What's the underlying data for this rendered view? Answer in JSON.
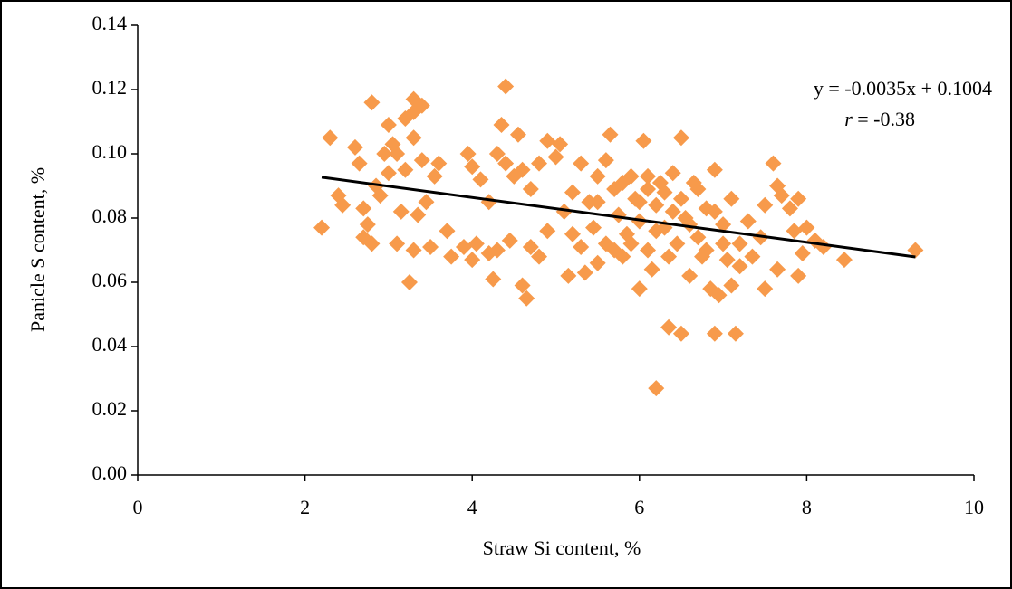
{
  "chart_data": {
    "type": "scatter",
    "x_label": "Straw Si content, %",
    "y_label": "Panicle S content, %",
    "equation": "y = -0.0035x + 0.1004",
    "r_symbol": "r",
    "r_text": " = -0.38",
    "color": "#f79a4b",
    "trendline": {
      "color": "#000000",
      "x": [
        2.2,
        9.3
      ],
      "y": [
        0.0927,
        0.0679
      ]
    },
    "xlim": [
      0,
      10
    ],
    "xticks": [
      0,
      2,
      4,
      6,
      8,
      10
    ],
    "ylim": [
      0,
      0.14
    ],
    "yticks": [
      {
        "value": 0,
        "label": "0.00"
      },
      {
        "value": 0.02,
        "label": "0.02"
      },
      {
        "value": 0.04,
        "label": "0.04"
      },
      {
        "value": 0.06,
        "label": "0.06"
      },
      {
        "value": 0.08,
        "label": "0.08"
      },
      {
        "value": 0.1,
        "label": "0.10"
      },
      {
        "value": 0.12,
        "label": "0.12"
      },
      {
        "value": 0.14,
        "label": "0.14"
      }
    ],
    "x": [
      2.2,
      2.3,
      2.4,
      2.45,
      2.6,
      2.65,
      2.7,
      2.7,
      2.8,
      2.8,
      2.85,
      2.9,
      2.95,
      3.0,
      3.05,
      3.1,
      3.1,
      3.15,
      3.2,
      3.2,
      3.25,
      3.3,
      3.3,
      3.3,
      3.3,
      3.35,
      3.4,
      3.4,
      3.45,
      3.5,
      3.55,
      3.6,
      3.7,
      3.75,
      3.9,
      3.95,
      4.0,
      4.0,
      4.05,
      4.1,
      4.2,
      4.2,
      4.25,
      4.3,
      4.35,
      4.4,
      4.4,
      4.45,
      4.5,
      4.55,
      4.6,
      4.65,
      4.7,
      4.7,
      4.8,
      4.8,
      4.9,
      4.9,
      5.0,
      5.05,
      5.1,
      5.15,
      5.2,
      5.3,
      5.3,
      5.35,
      5.4,
      5.45,
      5.5,
      5.5,
      5.6,
      5.6,
      5.65,
      5.7,
      5.75,
      5.8,
      5.85,
      5.9,
      5.95,
      6.0,
      6.0,
      6.05,
      6.1,
      6.1,
      6.15,
      6.2,
      6.2,
      6.25,
      6.3,
      6.35,
      6.35,
      6.4,
      6.45,
      6.5,
      6.5,
      6.5,
      6.55,
      6.6,
      6.65,
      6.7,
      6.75,
      6.8,
      6.85,
      6.9,
      6.9,
      6.95,
      7.0,
      7.05,
      7.1,
      7.1,
      7.15,
      7.2,
      7.3,
      7.35,
      7.45,
      7.5,
      7.5,
      7.6,
      7.65,
      7.65,
      7.7,
      7.8,
      7.85,
      7.9,
      7.9,
      7.95,
      8.0,
      8.1,
      8.2,
      8.45,
      9.3,
      5.2,
      5.7,
      6.0,
      6.3,
      6.6,
      6.8,
      7.0,
      5.9,
      6.2,
      4.3,
      4.6,
      3.0,
      2.75,
      6.4,
      6.1,
      5.5,
      6.7,
      6.9,
      7.2,
      5.8
    ],
    "y": [
      0.077,
      0.105,
      0.087,
      0.084,
      0.102,
      0.097,
      0.083,
      0.074,
      0.116,
      0.072,
      0.09,
      0.087,
      0.1,
      0.109,
      0.103,
      0.1,
      0.072,
      0.082,
      0.111,
      0.095,
      0.06,
      0.117,
      0.113,
      0.105,
      0.07,
      0.081,
      0.115,
      0.098,
      0.085,
      0.071,
      0.093,
      0.097,
      0.076,
      0.068,
      0.071,
      0.1,
      0.096,
      0.067,
      0.072,
      0.092,
      0.069,
      0.085,
      0.061,
      0.1,
      0.109,
      0.121,
      0.097,
      0.073,
      0.093,
      0.106,
      0.059,
      0.055,
      0.089,
      0.071,
      0.097,
      0.068,
      0.104,
      0.076,
      0.099,
      0.103,
      0.082,
      0.062,
      0.088,
      0.097,
      0.071,
      0.063,
      0.085,
      0.077,
      0.093,
      0.066,
      0.098,
      0.072,
      0.106,
      0.089,
      0.081,
      0.068,
      0.075,
      0.093,
      0.086,
      0.079,
      0.058,
      0.104,
      0.07,
      0.089,
      0.064,
      0.027,
      0.084,
      0.091,
      0.077,
      0.046,
      0.068,
      0.094,
      0.072,
      0.105,
      0.044,
      0.086,
      0.08,
      0.062,
      0.091,
      0.074,
      0.068,
      0.083,
      0.058,
      0.095,
      0.044,
      0.056,
      0.078,
      0.067,
      0.086,
      0.059,
      0.044,
      0.072,
      0.079,
      0.068,
      0.074,
      0.084,
      0.058,
      0.097,
      0.09,
      0.064,
      0.087,
      0.083,
      0.076,
      0.062,
      0.086,
      0.069,
      0.077,
      0.073,
      0.071,
      0.067,
      0.07,
      0.075,
      0.07,
      0.085,
      0.088,
      0.078,
      0.07,
      0.072,
      0.072,
      0.076,
      0.07,
      0.095,
      0.094,
      0.078,
      0.082,
      0.093,
      0.085,
      0.089,
      0.082,
      0.065,
      0.091
    ]
  }
}
